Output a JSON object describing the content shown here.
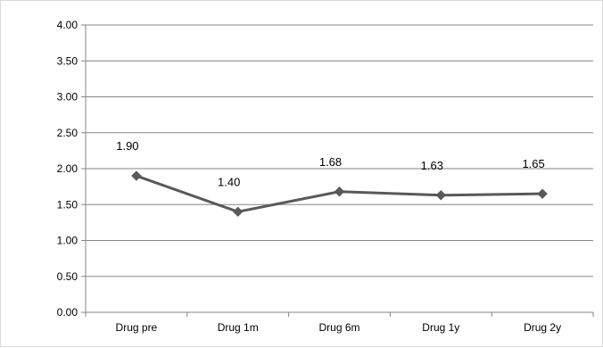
{
  "chart_data": {
    "type": "line",
    "title": "",
    "xlabel": "",
    "ylabel": "",
    "categories": [
      "Drug pre",
      "Drug 1m",
      "Drug 6m",
      "Drug 1y",
      "Drug 2y"
    ],
    "series": [
      {
        "values": [
          1.9,
          1.4,
          1.68,
          1.63,
          1.65
        ],
        "data_labels": [
          "1.90",
          "1.40",
          "1.68",
          "1.63",
          "1.65"
        ],
        "color": "#595959",
        "marker": "diamond"
      }
    ],
    "ylim": [
      0,
      4
    ],
    "y_ticks": [
      "0.00",
      "0.50",
      "1.00",
      "1.50",
      "2.00",
      "2.50",
      "3.00",
      "3.50",
      "4.00"
    ],
    "grid": true,
    "legend": "none",
    "gridline_color": "#868686",
    "axis_color": "#868686"
  }
}
